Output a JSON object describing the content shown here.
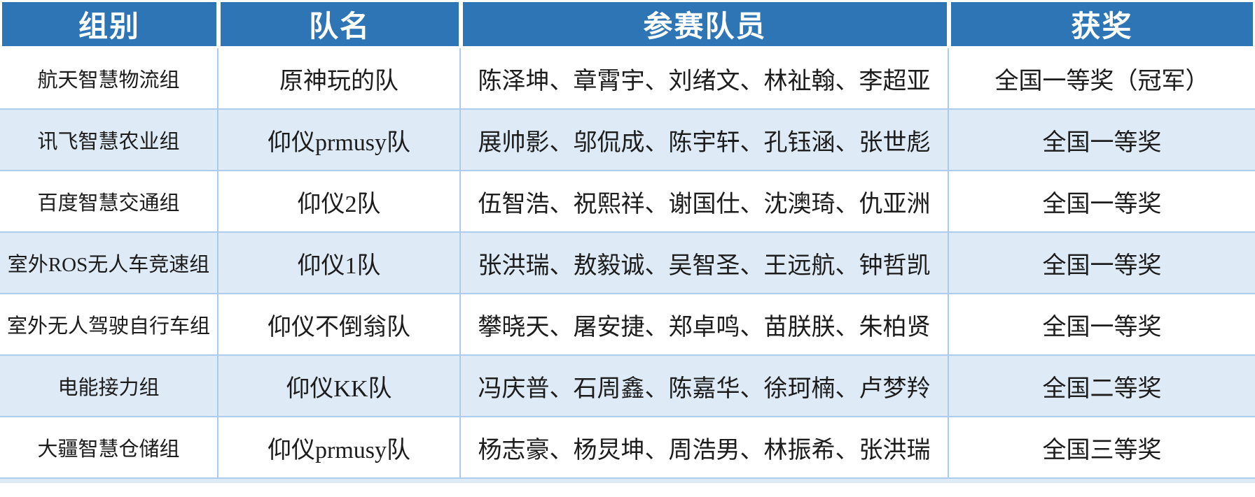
{
  "table": {
    "columns": [
      {
        "label": "组别"
      },
      {
        "label": "队名"
      },
      {
        "label": "参赛队员"
      },
      {
        "label": "获奖"
      }
    ],
    "rows": [
      {
        "group": "航天智慧物流组",
        "team": "原神玩的队",
        "members": "陈泽坤、章霄宇、刘绪文、林祉翰、李超亚",
        "award": "全国一等奖（冠军）"
      },
      {
        "group": "讯飞智慧农业组",
        "team": "仰仪prmusy队",
        "members": "展帅影、邬侃成、陈宇轩、孔钰涵、张世彪",
        "award": "全国一等奖"
      },
      {
        "group": "百度智慧交通组",
        "team": "仰仪2队",
        "members": "伍智浩、祝熙祥、谢国仕、沈澳琦、仇亚洲",
        "award": "全国一等奖"
      },
      {
        "group": "室外ROS无人车竞速组",
        "team": "仰仪1队",
        "members": "张洪瑞、敖毅诚、吴智圣、王远航、钟哲凯",
        "award": "全国一等奖"
      },
      {
        "group": "室外无人驾驶自行车组",
        "team": "仰仪不倒翁队",
        "members": "攀晓天、屠安捷、郑卓鸣、苗朕朕、朱柏贤",
        "award": "全国一等奖"
      },
      {
        "group": "电能接力组",
        "team": "仰仪KK队",
        "members": "冯庆普、石周鑫、陈嘉华、徐珂楠、卢梦羚",
        "award": "全国二等奖"
      },
      {
        "group": "大疆智慧仓储组",
        "team": "仰仪prmusy队",
        "members": "杨志豪、杨炅坤、周浩男、林振希、张洪瑞",
        "award": "全国三等奖"
      }
    ],
    "colors": {
      "header_bg": "#2E75B6",
      "header_text": "#FFFFFF",
      "row_bg": "#FFFFFF",
      "row_alt_bg": "#DEEBF7",
      "grid_line": "#ABCDEB",
      "body_text": "#1C1C1C"
    }
  }
}
